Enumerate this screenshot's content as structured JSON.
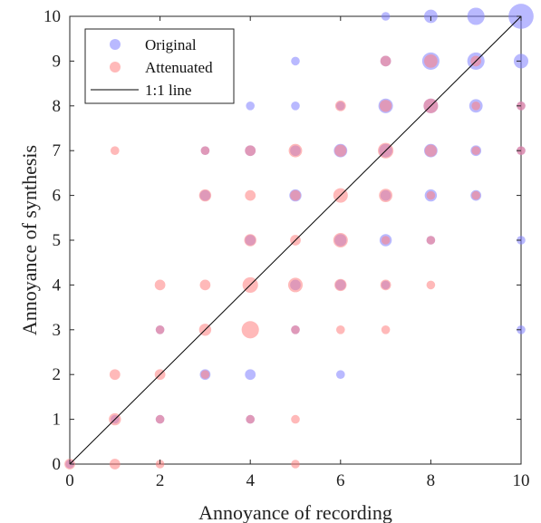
{
  "chart_data": {
    "type": "scatter",
    "title": "",
    "xlabel": "Annoyance of recording",
    "ylabel": "Annoyance of synthesis",
    "xlim": [
      0,
      10
    ],
    "ylim": [
      0,
      10
    ],
    "xticks": [
      0,
      2,
      4,
      6,
      8,
      10
    ],
    "yticks": [
      0,
      1,
      2,
      3,
      4,
      5,
      6,
      7,
      8,
      9,
      10
    ],
    "grid": false,
    "legend_position": "top-left",
    "marker_size_encoding": "count",
    "series": [
      {
        "name": "Original",
        "color": "#8080ff",
        "opacity": 0.55,
        "points": [
          {
            "x": 0,
            "y": 0,
            "count": 1
          },
          {
            "x": 1,
            "y": 1,
            "count": 1
          },
          {
            "x": 2,
            "y": 1,
            "count": 1
          },
          {
            "x": 2,
            "y": 3,
            "count": 1
          },
          {
            "x": 3,
            "y": 2,
            "count": 2
          },
          {
            "x": 3,
            "y": 6,
            "count": 2
          },
          {
            "x": 3,
            "y": 7,
            "count": 1
          },
          {
            "x": 4,
            "y": 1,
            "count": 1
          },
          {
            "x": 4,
            "y": 2,
            "count": 2
          },
          {
            "x": 4,
            "y": 5,
            "count": 2
          },
          {
            "x": 4,
            "y": 7,
            "count": 2
          },
          {
            "x": 4,
            "y": 8,
            "count": 1
          },
          {
            "x": 5,
            "y": 3,
            "count": 1
          },
          {
            "x": 5,
            "y": 4,
            "count": 2
          },
          {
            "x": 5,
            "y": 6,
            "count": 3
          },
          {
            "x": 5,
            "y": 7,
            "count": 2
          },
          {
            "x": 5,
            "y": 8,
            "count": 1
          },
          {
            "x": 5,
            "y": 9,
            "count": 1
          },
          {
            "x": 6,
            "y": 2,
            "count": 1
          },
          {
            "x": 6,
            "y": 4,
            "count": 2
          },
          {
            "x": 6,
            "y": 5,
            "count": 3
          },
          {
            "x": 6,
            "y": 7,
            "count": 4
          },
          {
            "x": 6,
            "y": 8,
            "count": 1
          },
          {
            "x": 7,
            "y": 4,
            "count": 1
          },
          {
            "x": 7,
            "y": 5,
            "count": 3
          },
          {
            "x": 7,
            "y": 6,
            "count": 2
          },
          {
            "x": 7,
            "y": 7,
            "count": 4
          },
          {
            "x": 7,
            "y": 8,
            "count": 5
          },
          {
            "x": 7,
            "y": 9,
            "count": 2
          },
          {
            "x": 7,
            "y": 10,
            "count": 1
          },
          {
            "x": 8,
            "y": 5,
            "count": 1
          },
          {
            "x": 8,
            "y": 6,
            "count": 3
          },
          {
            "x": 8,
            "y": 7,
            "count": 4
          },
          {
            "x": 8,
            "y": 8,
            "count": 5
          },
          {
            "x": 8,
            "y": 9,
            "count": 8
          },
          {
            "x": 8,
            "y": 10,
            "count": 4
          },
          {
            "x": 9,
            "y": 6,
            "count": 2
          },
          {
            "x": 9,
            "y": 7,
            "count": 2
          },
          {
            "x": 9,
            "y": 8,
            "count": 4
          },
          {
            "x": 9,
            "y": 9,
            "count": 8
          },
          {
            "x": 9,
            "y": 10,
            "count": 8
          },
          {
            "x": 10,
            "y": 3,
            "count": 1
          },
          {
            "x": 10,
            "y": 5,
            "count": 1
          },
          {
            "x": 10,
            "y": 7,
            "count": 1
          },
          {
            "x": 10,
            "y": 8,
            "count": 1
          },
          {
            "x": 10,
            "y": 9,
            "count": 5
          },
          {
            "x": 10,
            "y": 10,
            "count": 20
          }
        ]
      },
      {
        "name": "Attenuated",
        "color": "#ff8080",
        "opacity": 0.55,
        "points": [
          {
            "x": 0,
            "y": 0,
            "count": 2
          },
          {
            "x": 1,
            "y": 0,
            "count": 2
          },
          {
            "x": 1,
            "y": 1,
            "count": 3
          },
          {
            "x": 1,
            "y": 2,
            "count": 2
          },
          {
            "x": 1,
            "y": 7,
            "count": 1
          },
          {
            "x": 2,
            "y": 0,
            "count": 1
          },
          {
            "x": 2,
            "y": 1,
            "count": 1
          },
          {
            "x": 2,
            "y": 2,
            "count": 2
          },
          {
            "x": 2,
            "y": 3,
            "count": 1
          },
          {
            "x": 2,
            "y": 4,
            "count": 2
          },
          {
            "x": 3,
            "y": 2,
            "count": 1
          },
          {
            "x": 3,
            "y": 3,
            "count": 3
          },
          {
            "x": 3,
            "y": 4,
            "count": 2
          },
          {
            "x": 3,
            "y": 6,
            "count": 3
          },
          {
            "x": 3,
            "y": 7,
            "count": 1
          },
          {
            "x": 4,
            "y": 1,
            "count": 1
          },
          {
            "x": 4,
            "y": 3,
            "count": 8
          },
          {
            "x": 4,
            "y": 4,
            "count": 6
          },
          {
            "x": 4,
            "y": 5,
            "count": 3
          },
          {
            "x": 4,
            "y": 6,
            "count": 2
          },
          {
            "x": 4,
            "y": 7,
            "count": 2
          },
          {
            "x": 5,
            "y": 0,
            "count": 1
          },
          {
            "x": 5,
            "y": 1,
            "count": 1
          },
          {
            "x": 5,
            "y": 3,
            "count": 1
          },
          {
            "x": 5,
            "y": 4,
            "count": 5
          },
          {
            "x": 5,
            "y": 5,
            "count": 2
          },
          {
            "x": 5,
            "y": 6,
            "count": 2
          },
          {
            "x": 5,
            "y": 7,
            "count": 4
          },
          {
            "x": 6,
            "y": 3,
            "count": 1
          },
          {
            "x": 6,
            "y": 4,
            "count": 3
          },
          {
            "x": 6,
            "y": 5,
            "count": 5
          },
          {
            "x": 6,
            "y": 6,
            "count": 5
          },
          {
            "x": 6,
            "y": 7,
            "count": 3
          },
          {
            "x": 6,
            "y": 8,
            "count": 2
          },
          {
            "x": 7,
            "y": 3,
            "count": 1
          },
          {
            "x": 7,
            "y": 4,
            "count": 2
          },
          {
            "x": 7,
            "y": 5,
            "count": 1
          },
          {
            "x": 7,
            "y": 6,
            "count": 4
          },
          {
            "x": 7,
            "y": 7,
            "count": 6
          },
          {
            "x": 7,
            "y": 8,
            "count": 3
          },
          {
            "x": 7,
            "y": 9,
            "count": 2
          },
          {
            "x": 8,
            "y": 4,
            "count": 1
          },
          {
            "x": 8,
            "y": 5,
            "count": 1
          },
          {
            "x": 8,
            "y": 6,
            "count": 1
          },
          {
            "x": 8,
            "y": 7,
            "count": 3
          },
          {
            "x": 8,
            "y": 8,
            "count": 5
          },
          {
            "x": 8,
            "y": 9,
            "count": 4
          },
          {
            "x": 9,
            "y": 6,
            "count": 1
          },
          {
            "x": 9,
            "y": 7,
            "count": 1
          },
          {
            "x": 9,
            "y": 8,
            "count": 1
          },
          {
            "x": 9,
            "y": 9,
            "count": 2
          },
          {
            "x": 10,
            "y": 7,
            "count": 1
          },
          {
            "x": 10,
            "y": 8,
            "count": 1
          }
        ]
      }
    ],
    "reference_line": {
      "name": "1:1 line",
      "color": "#000000",
      "from": [
        0,
        0
      ],
      "to": [
        10,
        10
      ]
    }
  }
}
